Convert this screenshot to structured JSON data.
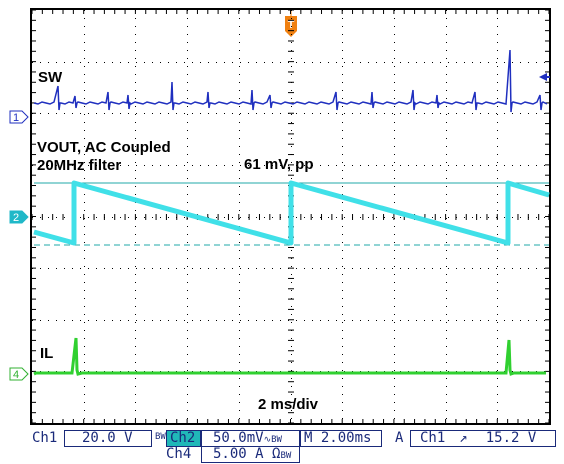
{
  "waveform": {
    "labels": {
      "sw": "SW",
      "vout_line1": "VOUT, AC Coupled",
      "vout_line2": "20MHz filter",
      "ripple": "61 mV, pp",
      "il": "IL",
      "timebase_note": "2 ms/div"
    },
    "channel_markers": [
      "1",
      "2",
      "4"
    ],
    "trigger_marker": "T",
    "colors": {
      "ch1": "#1f2fbf",
      "ch2": "#40e0e8",
      "ch4": "#30d030",
      "cursor": "#20a8a8",
      "trigger": "#f08010",
      "grid": "#000000"
    }
  },
  "status_bar": {
    "ch1_label": "Ch1",
    "ch1_scale": "20.0 V",
    "ch1_bw": "BW",
    "ch2_label": "Ch2",
    "ch2_scale": "50.0mV",
    "ch2_coupling": "∿",
    "ch2_bw": "BW",
    "timebase": "M 2.00ms",
    "trigger_mode": "A",
    "trigger_source": "Ch1",
    "trigger_slope": "↗",
    "trigger_level": "15.2 V",
    "ch4_label": "Ch4",
    "ch4_scale": "5.00 A Ω",
    "ch4_bw": "BW"
  }
}
